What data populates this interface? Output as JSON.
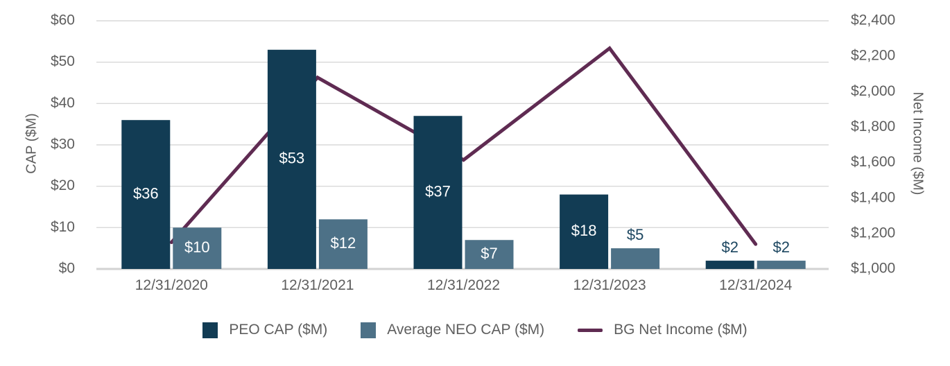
{
  "chart_data": {
    "type": "bar",
    "subtype": "combo-bar-line-dual-axis",
    "title": "",
    "categories": [
      "12/31/2020",
      "12/31/2021",
      "12/31/2022",
      "12/31/2023",
      "12/31/2024"
    ],
    "series": [
      {
        "name": "PEO CAP ($M)",
        "kind": "bar",
        "axis": "left",
        "color": "#123c54",
        "values": [
          36,
          53,
          37,
          18,
          2
        ],
        "data_labels": [
          "$36",
          "$53",
          "$37",
          "$18",
          "$2"
        ]
      },
      {
        "name": "Average NEO CAP ($M)",
        "kind": "bar",
        "axis": "left",
        "color": "#4d7187",
        "values": [
          10,
          12,
          7,
          5,
          2
        ],
        "data_labels": [
          "$10",
          "$12",
          "$7",
          "$5",
          "$2"
        ]
      },
      {
        "name": "BG Net Income ($M)",
        "kind": "line",
        "axis": "right",
        "color": "#5f2b52",
        "values": [
          1150,
          2080,
          1615,
          2245,
          1140
        ],
        "values_note": "estimated from gridlines; no data labels shown"
      }
    ],
    "left_axis": {
      "title": "CAP ($M)",
      "min": 0,
      "max": 60,
      "step": 10,
      "tick_labels": [
        "$0",
        "$10",
        "$20",
        "$30",
        "$40",
        "$50",
        "$60"
      ]
    },
    "right_axis": {
      "title": "Net Income ($M)",
      "min": 1000,
      "max": 2400,
      "step": 200,
      "tick_labels": [
        "$1,000",
        "$1,200",
        "$1,400",
        "$1,600",
        "$1,800",
        "$2,000",
        "$2,200",
        "$2,400"
      ]
    },
    "legend": [
      {
        "label": "PEO CAP ($M)",
        "swatch": "rect",
        "color": "#123c54"
      },
      {
        "label": "Average NEO CAP ($M)",
        "swatch": "rect",
        "color": "#4d7187"
      },
      {
        "label": "BG Net Income ($M)",
        "swatch": "line",
        "color": "#5f2b52"
      }
    ],
    "grid": true,
    "legend_position": "bottom",
    "colors": {
      "background": "#ffffff",
      "gridline": "#d9d9d9",
      "baseline": "#d2d2d2",
      "tick_text": "#5e5e5e",
      "bar_label_inside": "#ffffff",
      "bar_label_outside": "#1c4660"
    }
  }
}
